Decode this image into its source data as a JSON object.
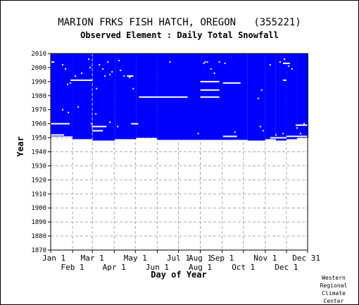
{
  "chart_data": {
    "type": "heatmap",
    "title": "MARION FRKS FISH HATCH, OREGON   (355221)",
    "subtitle": "Observed Element : Daily Total Snowfall",
    "xlabel": "Day of Year",
    "ylabel": "Year",
    "ylim": [
      1870,
      2010
    ],
    "yticks": [
      1870,
      1880,
      1890,
      1900,
      1910,
      1920,
      1930,
      1940,
      1950,
      1960,
      1970,
      1980,
      1990,
      2000,
      2010
    ],
    "xlim": [
      1,
      365
    ],
    "xticks_top": [
      {
        "label": "Jan 1",
        "day": 1
      },
      {
        "label": "Mar 1",
        "day": 60
      },
      {
        "label": "May 1",
        "day": 121
      },
      {
        "label": "Jul 1",
        "day": 182
      },
      {
        "label": "Aug 1",
        "day": 213
      },
      {
        "label": "Sep 1",
        "day": 244
      },
      {
        "label": "Nov 1",
        "day": 305
      },
      {
        "label": "Dec 31",
        "day": 365
      }
    ],
    "xticks_bottom": [
      {
        "label": "Feb 1",
        "day": 32
      },
      {
        "label": "Apr 1",
        "day": 91
      },
      {
        "label": "Jun 1",
        "day": 152
      },
      {
        "label": "Aug 1",
        "day": 213
      },
      {
        "label": "Oct 1",
        "day": 274
      },
      {
        "label": "Dec 1",
        "day": 335
      }
    ],
    "data_color": "#0000ff",
    "grid": true,
    "record_start_year": 1948,
    "record_end_year": 2010,
    "coverage_start": [
      {
        "day_from": 1,
        "day_to": 32,
        "year": 1951
      },
      {
        "day_from": 32,
        "day_to": 60,
        "year": 1949
      },
      {
        "day_from": 60,
        "day_to": 92,
        "year": 1948
      },
      {
        "day_from": 92,
        "day_to": 122,
        "year": 1949
      },
      {
        "day_from": 122,
        "day_to": 152,
        "year": 1950
      },
      {
        "day_from": 152,
        "day_to": 280,
        "year": 1948.5
      },
      {
        "day_from": 280,
        "day_to": 305,
        "year": 1948
      },
      {
        "day_from": 305,
        "day_to": 320,
        "year": 1949
      },
      {
        "day_from": 320,
        "day_to": 335,
        "year": 1948
      },
      {
        "day_from": 335,
        "day_to": 350,
        "year": 1949
      },
      {
        "day_from": 350,
        "day_to": 366,
        "year": 1950
      }
    ],
    "missing_segments": [
      {
        "year": 1991,
        "day_start": 29,
        "day_end": 60
      },
      {
        "year": 1979,
        "day_start": 126,
        "day_end": 195
      },
      {
        "year": 1990,
        "day_start": 213,
        "day_end": 240
      },
      {
        "year": 1984,
        "day_start": 213,
        "day_end": 240
      },
      {
        "year": 1979,
        "day_start": 213,
        "day_end": 240
      },
      {
        "year": 1989,
        "day_start": 245,
        "day_end": 270
      },
      {
        "year": 1960,
        "day_start": 1,
        "day_end": 28
      },
      {
        "year": 1958,
        "day_start": 60,
        "day_end": 80
      },
      {
        "year": 1955,
        "day_start": 60,
        "day_end": 75
      },
      {
        "year": 1951,
        "day_start": 245,
        "day_end": 265
      },
      {
        "year": 1959,
        "day_start": 348,
        "day_end": 365
      },
      {
        "year": 1952,
        "day_start": 1,
        "day_end": 20
      },
      {
        "year": 1951,
        "day_start": 335,
        "day_end": 365
      },
      {
        "year": 1950,
        "day_start": 312,
        "day_end": 335
      },
      {
        "year": 1991,
        "day_start": 330,
        "day_end": 335
      },
      {
        "year": 2003,
        "day_start": 330,
        "day_end": 340
      },
      {
        "year": 1960,
        "day_start": 115,
        "day_end": 125
      },
      {
        "year": 1994,
        "day_start": 110,
        "day_end": 118
      }
    ],
    "missing_dots": [
      [
        3,
        2004
      ],
      [
        5,
        2004
      ],
      [
        18,
        2002
      ],
      [
        22,
        1999
      ],
      [
        25,
        1988
      ],
      [
        29,
        1989
      ],
      [
        36,
        1994
      ],
      [
        45,
        1996
      ],
      [
        55,
        2006
      ],
      [
        57,
        2000
      ],
      [
        59,
        1960
      ],
      [
        60,
        1958
      ],
      [
        66,
        1985
      ],
      [
        70,
        2002
      ],
      [
        75,
        1999
      ],
      [
        78,
        1994
      ],
      [
        82,
        2004
      ],
      [
        85,
        1995
      ],
      [
        88,
        1997
      ],
      [
        98,
        2005
      ],
      [
        100,
        1998
      ],
      [
        105,
        1994
      ],
      [
        110,
        1994
      ],
      [
        113,
        1993
      ],
      [
        118,
        1985
      ],
      [
        170,
        2004
      ],
      [
        218,
        2003
      ],
      [
        220,
        2004
      ],
      [
        223,
        2004
      ],
      [
        228,
        1999
      ],
      [
        233,
        1996
      ],
      [
        240,
        2004
      ],
      [
        248,
        2003
      ],
      [
        295,
        1978
      ],
      [
        300,
        1984
      ],
      [
        302,
        1955
      ],
      [
        312,
        2002
      ],
      [
        320,
        1952
      ],
      [
        326,
        2004
      ],
      [
        332,
        2006
      ],
      [
        338,
        2001
      ],
      [
        343,
        1999
      ],
      [
        350,
        1957
      ],
      [
        355,
        1953
      ],
      [
        360,
        1960
      ],
      [
        18,
        1970
      ],
      [
        26,
        1968
      ],
      [
        40,
        1972
      ],
      [
        65,
        1967
      ],
      [
        85,
        1961
      ],
      [
        96,
        1958
      ],
      [
        210,
        1953
      ],
      [
        262,
        1954
      ],
      [
        298,
        1958
      ],
      [
        330,
        1953
      ]
    ]
  },
  "credit": [
    "Western",
    "Regional",
    "Climate",
    "Center"
  ]
}
